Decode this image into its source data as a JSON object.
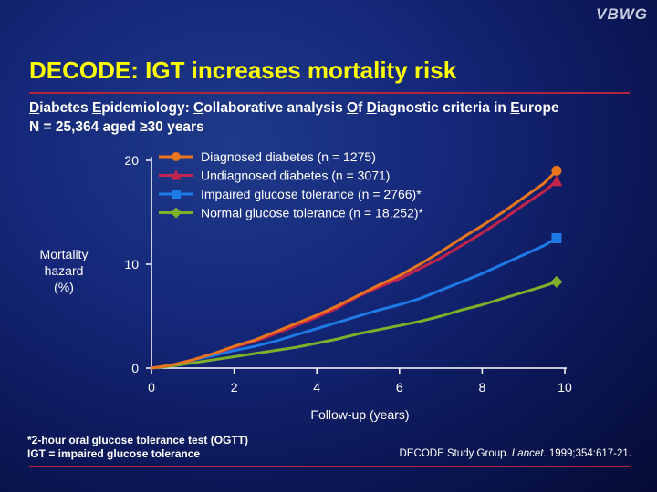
{
  "logo": "VBWG",
  "title": "DECODE: IGT increases mortality risk",
  "subtitle": {
    "line1_parts": [
      {
        "u": "D",
        "t": "iabetes "
      },
      {
        "u": "E",
        "t": "pidemiology: "
      },
      {
        "u": "C",
        "t": "ollaborative analysis "
      },
      {
        "u": "O",
        "t": "f "
      },
      {
        "u": "D",
        "t": "iagnostic criteria in "
      },
      {
        "u": "E",
        "t": "urope"
      }
    ],
    "line2": "N = 25,364 aged ≥30 years"
  },
  "footnote": {
    "line1": "*2-hour oral glucose tolerance test (OGTT)",
    "line2": "IGT = impaired glucose tolerance"
  },
  "citation": {
    "pre": "DECODE Study Group. ",
    "journal": "Lancet.",
    "post": " 1999;354:617-21."
  },
  "chart_data": {
    "type": "line",
    "ylabel": "Mortality hazard (%)",
    "xlabel": "Follow-up (years)",
    "xlim": [
      0,
      10
    ],
    "ylim": [
      0,
      20
    ],
    "xticks": [
      0,
      2,
      4,
      6,
      8,
      10
    ],
    "yticks": [
      0,
      10,
      20
    ],
    "grid": false,
    "legend_position": "top-left",
    "series": [
      {
        "name": "Diagnosed diabetes (n = 1275)",
        "color": "#e8761e",
        "marker": "circle",
        "x": [
          0,
          0.5,
          1,
          1.5,
          2,
          2.5,
          3,
          3.5,
          4,
          4.5,
          5,
          5.5,
          6,
          6.5,
          7,
          7.5,
          8,
          8.5,
          9,
          9.5,
          9.8
        ],
        "y": [
          0,
          0.3,
          0.8,
          1.4,
          2.1,
          2.7,
          3.5,
          4.3,
          5.1,
          6.0,
          7.0,
          8.0,
          8.9,
          10.0,
          11.2,
          12.5,
          13.7,
          15.0,
          16.4,
          17.8,
          19.0
        ]
      },
      {
        "name": "Undiagnosed diabetes (n = 3071)",
        "color": "#c2244b",
        "marker": "triangle",
        "x": [
          0,
          0.5,
          1,
          1.5,
          2,
          2.5,
          3,
          3.5,
          4,
          4.5,
          5,
          5.5,
          6,
          6.5,
          7,
          7.5,
          8,
          8.5,
          9,
          9.5,
          9.8
        ],
        "y": [
          0,
          0.3,
          0.8,
          1.4,
          2.0,
          2.6,
          3.3,
          4.1,
          4.9,
          5.8,
          6.9,
          7.8,
          8.6,
          9.6,
          10.6,
          11.8,
          13.0,
          14.3,
          15.7,
          17.0,
          18.0
        ]
      },
      {
        "name": "Impaired glucose tolerance (n = 2766)*",
        "color": "#1e7ae6",
        "marker": "square",
        "x": [
          0,
          0.5,
          1,
          1.5,
          2,
          2.5,
          3,
          3.5,
          4,
          4.5,
          5,
          5.5,
          6,
          6.5,
          7,
          7.5,
          8,
          8.5,
          9,
          9.5,
          9.8
        ],
        "y": [
          0,
          0.3,
          0.8,
          1.2,
          1.7,
          2.1,
          2.6,
          3.2,
          3.8,
          4.4,
          5.0,
          5.6,
          6.1,
          6.7,
          7.5,
          8.3,
          9.1,
          10.0,
          10.9,
          11.8,
          12.5
        ]
      },
      {
        "name": "Normal glucose tolerance (n = 18,252)*",
        "color": "#7fb02a",
        "marker": "diamond",
        "x": [
          0,
          0.5,
          1,
          1.5,
          2,
          2.5,
          3,
          3.5,
          4,
          4.5,
          5,
          5.5,
          6,
          6.5,
          7,
          7.5,
          8,
          8.5,
          9,
          9.5,
          9.8
        ],
        "y": [
          0,
          0.2,
          0.5,
          0.8,
          1.1,
          1.4,
          1.7,
          2.0,
          2.4,
          2.8,
          3.3,
          3.7,
          4.1,
          4.5,
          5.0,
          5.6,
          6.1,
          6.7,
          7.3,
          7.9,
          8.3
        ]
      }
    ]
  }
}
